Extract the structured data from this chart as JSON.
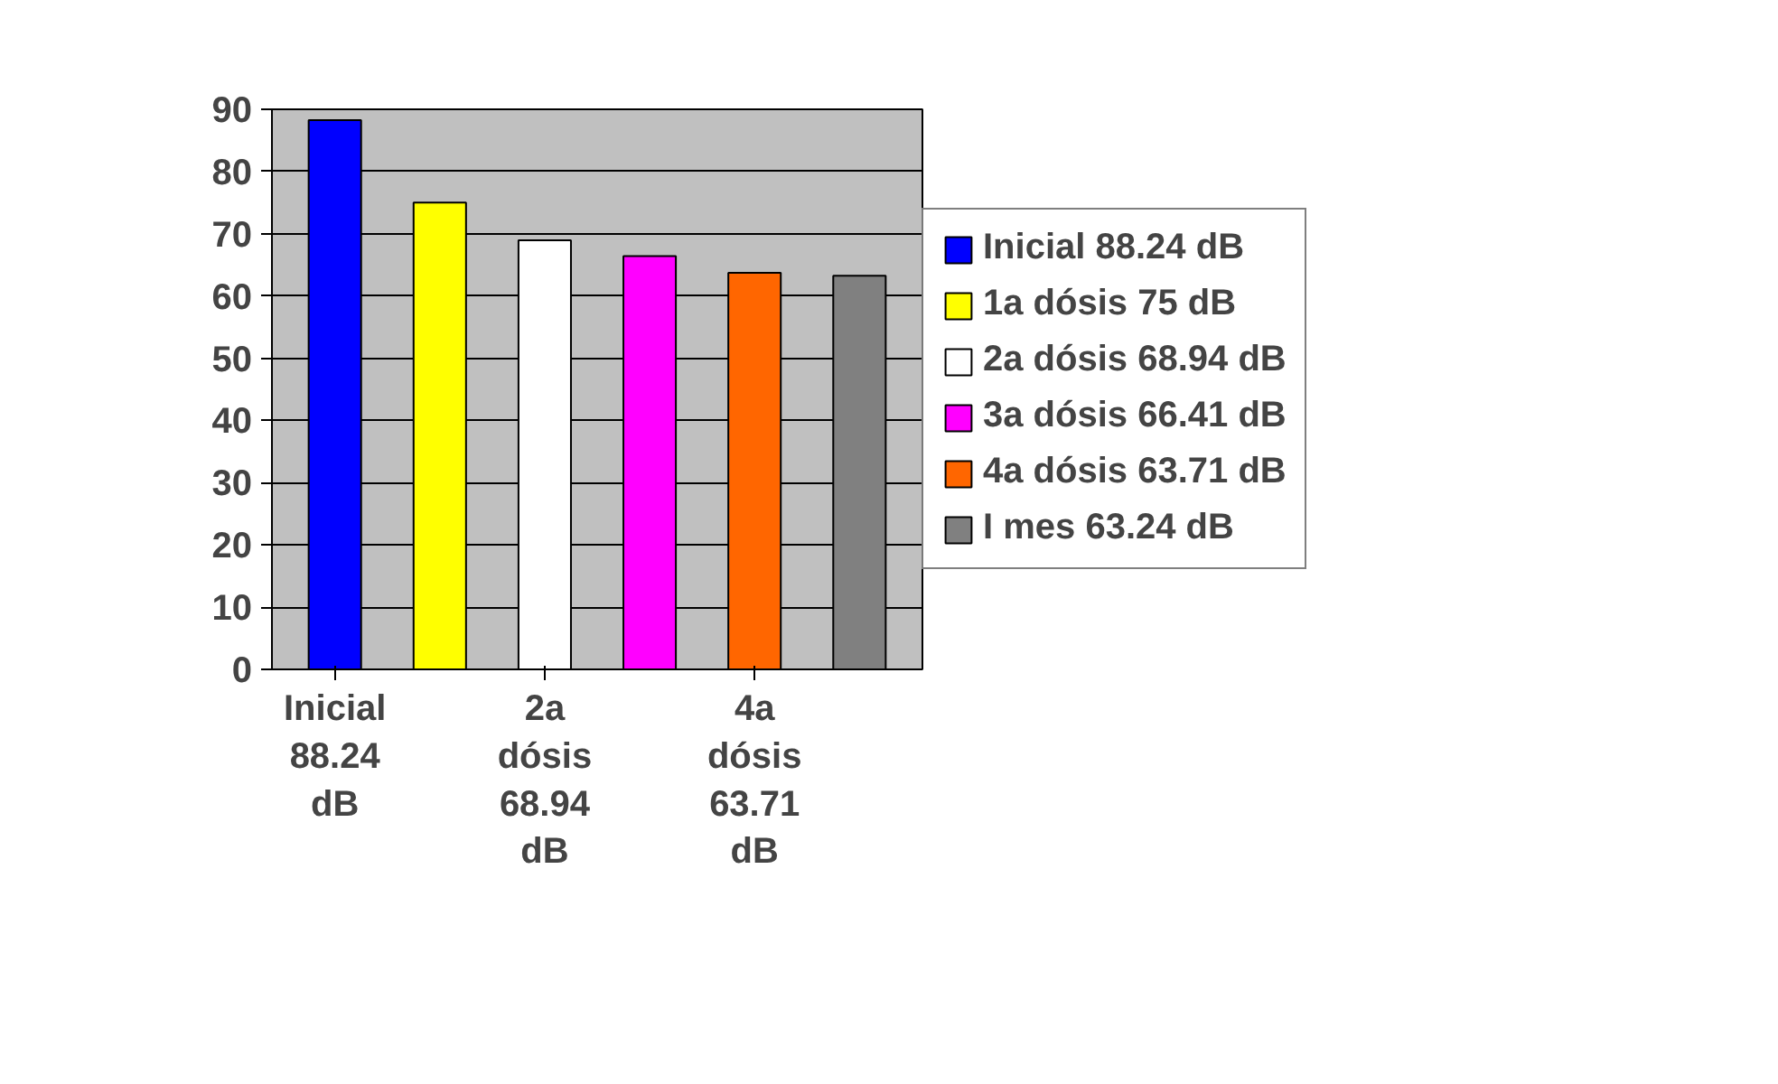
{
  "chart_data": {
    "type": "bar",
    "categories": [
      "Inicial 88.24 dB",
      null,
      "2a dósis 68.94 dB",
      null,
      "4a dósis 63.71 dB",
      null
    ],
    "series": [
      {
        "name": "Inicial 88.24 dB",
        "color": "#0000ff",
        "values": [
          88.24,
          null,
          null,
          null,
          null,
          null
        ]
      },
      {
        "name": "1a dósis 75 dB",
        "color": "#ffff00",
        "values": [
          null,
          75,
          null,
          null,
          null,
          null
        ]
      },
      {
        "name": "2a dósis 68.94 dB",
        "color": "#ffffff",
        "values": [
          null,
          null,
          68.94,
          null,
          null,
          null
        ]
      },
      {
        "name": "3a dósis 66.41 dB",
        "color": "#ff00ff",
        "values": [
          null,
          null,
          null,
          66.41,
          null,
          null
        ]
      },
      {
        "name": "4a dósis 63.71 dB",
        "color": "#ff6600",
        "values": [
          null,
          null,
          null,
          null,
          63.71,
          null
        ]
      },
      {
        "name": "I mes 63.24 dB",
        "color": "#808080",
        "values": [
          null,
          null,
          null,
          null,
          null,
          63.24
        ]
      }
    ],
    "ylim": [
      0,
      90
    ],
    "yticks": [
      0,
      10,
      20,
      30,
      40,
      50,
      60,
      70,
      80,
      90
    ],
    "grid": "y",
    "legend": "right"
  }
}
